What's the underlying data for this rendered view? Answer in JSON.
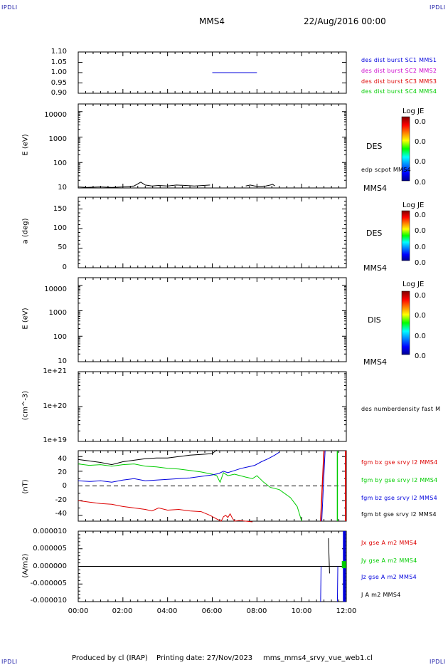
{
  "header": {
    "corner_left_top": "IPDLI",
    "corner_right_top": "IPDLI",
    "corner_left_bottom": "IPDLI",
    "corner_right_bottom": "IPDLI",
    "spacecraft": "MMS4",
    "datetime": "22/Aug/2016 00:00"
  },
  "footer": {
    "produced": "Produced by cl (IRAP)",
    "printing": "Printing date: 27/Nov/2023",
    "file": "mms_mms4_srvy_vue_web1.cl"
  },
  "colors": {
    "blue": "#0000dd",
    "magenta": "#cc00cc",
    "red": "#dd0000",
    "green": "#00cc00",
    "black": "#000000"
  },
  "chart_data": [
    {
      "type": "line",
      "panel": "burst",
      "ylim": [
        0.9,
        1.1
      ],
      "yticks": [
        "1.10",
        "1.05",
        "1.00",
        "0.95",
        "0.90"
      ],
      "xlim": [
        0,
        12
      ],
      "series": [
        {
          "name": "des dist burst SC1 MMS1",
          "color": "blue",
          "x": [
            6.0,
            8.0
          ],
          "y": [
            1.0,
            1.0
          ]
        },
        {
          "name": "des dist burst SC2 MMS2",
          "color": "magenta",
          "x": [],
          "y": []
        },
        {
          "name": "des dist burst SC3 MMS3",
          "color": "red",
          "x": [],
          "y": []
        },
        {
          "name": "des dist burst SC4 MMS4",
          "color": "green",
          "x": [],
          "y": []
        }
      ]
    },
    {
      "type": "heatmap",
      "panel": "des_energy",
      "ylabel": "E (eV)",
      "yscale": "log",
      "ylim": [
        10,
        20000
      ],
      "yticks": [
        "10000",
        "1000",
        "100",
        "10"
      ],
      "side_label": "DES",
      "instrument": "MMS4",
      "colorbar": {
        "title": "Log JE",
        "values": [
          "0.0",
          "0.0",
          "0.0",
          "0.0"
        ]
      },
      "overlay": {
        "name": "edp scpot MMS4",
        "x": [
          0.0,
          0.4,
          1.0,
          1.5,
          2.0,
          2.5,
          2.8,
          3.0,
          3.3,
          3.6,
          4.0,
          4.4,
          4.8,
          5.2,
          5.6,
          5.9,
          6.0,
          7.5,
          7.7,
          7.9,
          8.1,
          8.4,
          8.6,
          8.7,
          8.8
        ],
        "y": [
          11,
          10.5,
          11,
          10.5,
          11,
          12,
          17,
          13,
          12,
          12.5,
          12,
          13,
          12.5,
          12,
          12.5,
          13,
          null,
          12,
          13,
          12,
          11.5,
          12,
          13,
          14,
          12
        ]
      }
    },
    {
      "type": "heatmap",
      "panel": "des_pitch",
      "ylabel": "a (deg)",
      "ylim": [
        0,
        180
      ],
      "yticks": [
        "150",
        "100",
        "50",
        "0"
      ],
      "side_label": "DES",
      "instrument": "MMS4",
      "colorbar": {
        "title": "Log JE",
        "values": [
          "0.0",
          "0.0",
          "0.0",
          "0.0"
        ]
      }
    },
    {
      "type": "heatmap",
      "panel": "dis_energy",
      "ylabel": "E (eV)",
      "yscale": "log",
      "ylim": [
        10,
        20000
      ],
      "yticks": [
        "10000",
        "1000",
        "100",
        "10"
      ],
      "side_label": "DIS",
      "instrument": "MMS4",
      "colorbar": {
        "title": "Log JE",
        "values": [
          "0.0",
          "0.0",
          "0.0",
          "0.0"
        ]
      }
    },
    {
      "type": "line",
      "panel": "density",
      "ylabel": "(cm^-3)",
      "yscale": "log",
      "ylim": [
        1e+19,
        1e+21
      ],
      "yticks": [
        "1e+21",
        "1e+20",
        "1e+19"
      ],
      "series": [
        {
          "name": "des numberdensity fast M",
          "color": "black",
          "x": [],
          "y": []
        }
      ]
    },
    {
      "type": "line",
      "panel": "fgm",
      "ylabel": "(nT)",
      "ylim": [
        -48,
        48
      ],
      "yticks": [
        "40",
        "20",
        "0",
        "-20",
        "-40"
      ],
      "series": [
        {
          "name": "fgm bx gse srvy l2 MMS4",
          "color": "red",
          "x": [
            0.0,
            0.5,
            1.0,
            1.5,
            2.0,
            2.5,
            3.0,
            3.3,
            3.6,
            4.0,
            4.5,
            5.0,
            5.5,
            5.9,
            6.2,
            6.4,
            6.5,
            6.6,
            6.7,
            6.8,
            6.9,
            7.0,
            7.2,
            7.5,
            7.8
          ],
          "y": [
            -20,
            -22,
            -24,
            -25,
            -28,
            -30,
            -32,
            -34,
            -30,
            -33,
            -32,
            -34,
            -35,
            -40,
            -45,
            -48,
            -42,
            -40,
            -43,
            -38,
            -44,
            -48,
            -47,
            -48,
            -49
          ]
        },
        {
          "name": "fgm by gse srvy l2 MMS4",
          "color": "green",
          "x": [
            0.0,
            0.5,
            1.0,
            1.5,
            2.0,
            2.5,
            3.0,
            3.5,
            4.0,
            4.5,
            5.0,
            5.5,
            6.0,
            6.2,
            6.35,
            6.5,
            6.7,
            7.0,
            7.5,
            7.8,
            8.0,
            8.3,
            8.6,
            9.0,
            9.5,
            9.8,
            10.0
          ],
          "y": [
            30,
            28,
            29,
            27,
            29,
            30,
            27,
            26,
            24,
            23,
            21,
            19,
            16,
            14,
            5,
            18,
            14,
            16,
            12,
            10,
            14,
            5,
            -2,
            -5,
            -16,
            -28,
            -48
          ]
        },
        {
          "name": "fgm bz gse srvy l2 MMS4",
          "color": "blue",
          "x": [
            0.0,
            0.5,
            1.0,
            1.5,
            2.0,
            2.5,
            3.0,
            3.5,
            4.0,
            4.5,
            5.0,
            5.5,
            6.0,
            6.3,
            6.5,
            6.7,
            7.0,
            7.3,
            7.6,
            7.9,
            8.2,
            8.5,
            8.8,
            9.0
          ],
          "y": [
            7,
            6,
            7,
            5,
            8,
            10,
            7,
            8,
            9,
            10,
            11,
            13,
            15,
            17,
            20,
            18,
            21,
            24,
            26,
            28,
            33,
            37,
            42,
            46
          ]
        },
        {
          "name": "fgm bt gse srvy l2 MMS4",
          "color": "black",
          "x": [
            0.0,
            0.5,
            1.0,
            1.5,
            2.0,
            2.5,
            3.0,
            3.5,
            4.0,
            4.5,
            5.0,
            5.5,
            6.0,
            6.2
          ],
          "y": [
            36,
            34,
            32,
            29,
            33,
            35,
            37,
            38,
            38,
            40,
            42,
            43,
            44,
            49
          ]
        }
      ]
    },
    {
      "type": "line",
      "panel": "current",
      "ylabel": "(A/m2)",
      "ylim": [
        -1e-05,
        1e-05
      ],
      "yticks": [
        "0.000010",
        "0.000005",
        "0.000000",
        "-0.000005",
        "-0.000010"
      ],
      "series": [
        {
          "name": "Jx gse A m2 MMS4",
          "color": "red",
          "x": [],
          "y": []
        },
        {
          "name": "Jy gse A m2 MMS4",
          "color": "green",
          "x": [],
          "y": []
        },
        {
          "name": "Jz gse A m2 MMS4",
          "color": "blue",
          "x": [],
          "y": []
        },
        {
          "name": "J A m2 MMS4",
          "color": "black",
          "x": [],
          "y": []
        }
      ]
    }
  ],
  "xaxis": {
    "ticks": [
      "00:00",
      "02:00",
      "04:00",
      "06:00",
      "08:00",
      "10:00",
      "12:00"
    ],
    "xlim": [
      0,
      12
    ]
  }
}
